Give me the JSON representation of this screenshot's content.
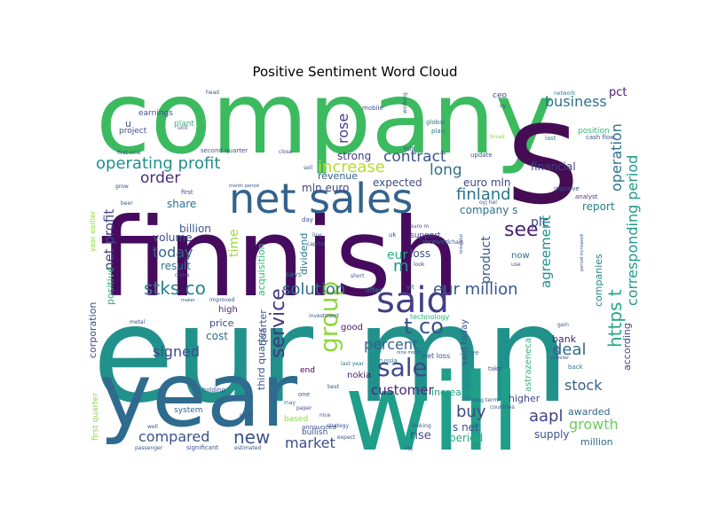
{
  "chart_data": {
    "type": "wordcloud",
    "title": "Positive Sentiment Word Cloud",
    "background": "#ffffff",
    "palette": "viridis",
    "words": [
      {
        "text": "company",
        "weight": 100,
        "color": "#3cba5f"
      },
      {
        "text": "finnish",
        "weight": 96,
        "color": "#460b5e"
      },
      {
        "text": "eur mn",
        "weight": 94,
        "color": "#21918c"
      },
      {
        "text": "s",
        "weight": 92,
        "color": "#450c54"
      },
      {
        "text": "will",
        "weight": 84,
        "color": "#1f9e89"
      },
      {
        "text": "year",
        "weight": 78,
        "color": "#2e6b8e"
      },
      {
        "text": "net sales",
        "weight": 52,
        "color": "#33638d"
      },
      {
        "text": "said",
        "weight": 40,
        "color": "#433e85"
      },
      {
        "text": "group",
        "weight": 30,
        "color": "#90d743"
      },
      {
        "text": "operating profit",
        "weight": 22,
        "color": "#218f8d"
      },
      {
        "text": "service",
        "weight": 22,
        "color": "#453781"
      },
      {
        "text": "sale",
        "weight": 24,
        "color": "#3e4a89"
      },
      {
        "text": "eur million",
        "weight": 20,
        "color": "#38588c"
      },
      {
        "text": "stks co",
        "weight": 20,
        "color": "#26828e"
      },
      {
        "text": "t co",
        "weight": 20,
        "color": "#3b518b"
      },
      {
        "text": "finland",
        "weight": 18,
        "color": "#2a768e"
      },
      {
        "text": "operation",
        "weight": 18,
        "color": "#2c728e"
      },
      {
        "text": "solution",
        "weight": 18,
        "color": "#2f6c8e"
      },
      {
        "text": "rose",
        "weight": 17,
        "color": "#424086"
      },
      {
        "text": "increase",
        "weight": 17,
        "color": "#b5de2b"
      },
      {
        "text": "business",
        "weight": 17,
        "color": "#2d708e"
      },
      {
        "text": "contract",
        "weight": 17,
        "color": "#3a548c"
      },
      {
        "text": "order",
        "weight": 17,
        "color": "#472c7a"
      },
      {
        "text": "long",
        "weight": 17,
        "color": "#2e6e8e"
      },
      {
        "text": "https t",
        "weight": 17,
        "color": "#23a983"
      },
      {
        "text": "corresponding period",
        "weight": 16,
        "color": "#1f988b"
      },
      {
        "text": "see",
        "weight": 17,
        "color": "#482173"
      },
      {
        "text": "buy",
        "weight": 16,
        "color": "#3f4889"
      },
      {
        "text": "percent",
        "weight": 16,
        "color": "#33638d"
      },
      {
        "text": "compared",
        "weight": 15,
        "color": "#3b528b"
      },
      {
        "text": "new",
        "weight": 16,
        "color": "#3b528b"
      },
      {
        "text": "market",
        "weight": 15,
        "color": "#3e4c8a"
      },
      {
        "text": "customer",
        "weight": 15,
        "color": "#482677"
      },
      {
        "text": "stock",
        "weight": 15,
        "color": "#34618d"
      },
      {
        "text": "aapl",
        "weight": 15,
        "color": "#414487"
      },
      {
        "text": "deal",
        "weight": 16,
        "color": "#2f6b8e"
      },
      {
        "text": "growth",
        "weight": 14,
        "color": "#6ccd5a"
      },
      {
        "text": "signed",
        "weight": 15,
        "color": "#3e4a89"
      },
      {
        "text": "today",
        "weight": 14,
        "color": "#31668e"
      },
      {
        "text": "agreement",
        "weight": 14,
        "color": "#228d8d"
      },
      {
        "text": "product",
        "weight": 13,
        "color": "#38598c"
      },
      {
        "text": "net profit",
        "weight": 14,
        "color": "#3f4788"
      },
      {
        "text": "m",
        "weight": 15,
        "color": "#1f958b"
      },
      {
        "text": "pct",
        "weight": 12,
        "color": "#481c6e"
      },
      {
        "text": "plc",
        "weight": 12,
        "color": "#3c4f8a"
      },
      {
        "text": "eur",
        "weight": 12,
        "color": "#28ae80"
      },
      {
        "text": "financial",
        "weight": 11,
        "color": "#404387"
      },
      {
        "text": "company s",
        "weight": 11,
        "color": "#2c718e"
      },
      {
        "text": "report",
        "weight": 11,
        "color": "#277e8e"
      },
      {
        "text": "companies",
        "weight": 10,
        "color": "#25838e"
      },
      {
        "text": "euro mln",
        "weight": 11,
        "color": "#3f4788"
      },
      {
        "text": "loss",
        "weight": 11,
        "color": "#39558c"
      },
      {
        "text": "expected",
        "weight": 11,
        "color": "#3d4d8a"
      },
      {
        "text": "strong",
        "weight": 11,
        "color": "#433d84"
      },
      {
        "text": "revenue",
        "weight": 10,
        "color": "#355f8d"
      },
      {
        "text": "mln euro",
        "weight": 11,
        "color": "#424186"
      },
      {
        "text": "share",
        "weight": 10,
        "color": "#2c728e"
      },
      {
        "text": "billion",
        "weight": 10,
        "color": "#3a538b"
      },
      {
        "text": "volume",
        "weight": 10,
        "color": "#3e4a89"
      },
      {
        "text": "result",
        "weight": 10,
        "color": "#2a778e"
      },
      {
        "text": "time",
        "weight": 12,
        "color": "#9bd93c"
      },
      {
        "text": "positive",
        "weight": 10,
        "color": "#28ae80"
      },
      {
        "text": "acquisition",
        "weight": 10,
        "color": "#35b779"
      },
      {
        "text": "dividend",
        "weight": 10,
        "color": "#2b758e"
      },
      {
        "text": "corporation",
        "weight": 9,
        "color": "#3e4989"
      },
      {
        "text": "quarter",
        "weight": 9,
        "color": "#3a548c"
      },
      {
        "text": "third quarter",
        "weight": 9,
        "color": "#39568c"
      },
      {
        "text": "cost",
        "weight": 10,
        "color": "#2d708e"
      },
      {
        "text": "price",
        "weight": 9,
        "color": "#3f4889"
      },
      {
        "text": "high",
        "weight": 9,
        "color": "#482475"
      },
      {
        "text": "good",
        "weight": 9,
        "color": "#481b6d"
      },
      {
        "text": "said today",
        "weight": 9,
        "color": "#3b528b"
      },
      {
        "text": "nokia",
        "weight": 9,
        "color": "#48186a"
      },
      {
        "text": "increased",
        "weight": 9,
        "color": "#20a386"
      },
      {
        "text": "higher",
        "weight": 9,
        "color": "#414487"
      },
      {
        "text": "bank",
        "weight": 9,
        "color": "#481f70"
      },
      {
        "text": "rise",
        "weight": 10,
        "color": "#3f4889"
      },
      {
        "text": "s net",
        "weight": 10,
        "color": "#3c508b"
      },
      {
        "text": "period",
        "weight": 10,
        "color": "#28ae80"
      },
      {
        "text": "supply",
        "weight": 9,
        "color": "#3b528b"
      },
      {
        "text": "awarded",
        "weight": 9,
        "color": "#31688e"
      },
      {
        "text": "million",
        "weight": 9,
        "color": "#306a8e"
      },
      {
        "text": "according",
        "weight": 9,
        "color": "#3e4a89"
      },
      {
        "text": "astrazeneca",
        "weight": 8,
        "color": "#35b779"
      },
      {
        "text": "now",
        "weight": 8,
        "color": "#2e6d8e"
      },
      {
        "text": "support",
        "weight": 7,
        "color": "#3f4889"
      },
      {
        "text": "received",
        "weight": 6,
        "color": "#2d708e"
      },
      {
        "text": "end",
        "weight": 7,
        "color": "#440154"
      },
      {
        "text": "says",
        "weight": 7,
        "color": "#2a788e"
      },
      {
        "text": "bullish",
        "weight": 7,
        "color": "#3b528b"
      },
      {
        "text": "system",
        "weight": 7,
        "color": "#31688e"
      },
      {
        "text": "based",
        "weight": 7,
        "color": "#8fd744"
      },
      {
        "text": "technology",
        "weight": 7,
        "color": "#2fb47c"
      },
      {
        "text": "offer",
        "weight": 6,
        "color": "#26828e"
      },
      {
        "text": "net loss",
        "weight": 6,
        "color": "#3e4a89"
      },
      {
        "text": "earnings",
        "weight": 7,
        "color": "#3b528b"
      },
      {
        "text": "u",
        "weight": 9,
        "color": "#3a538b"
      },
      {
        "text": "project",
        "weight": 7,
        "color": "#3e4c8a"
      },
      {
        "text": "plant",
        "weight": 7,
        "color": "#35b779"
      },
      {
        "text": "mobile",
        "weight": 5,
        "color": "#3b528b"
      },
      {
        "text": "ceo",
        "weight": 6,
        "color": "#3e4989"
      },
      {
        "text": "global",
        "weight": 5,
        "color": "#2c728e"
      },
      {
        "text": "plan",
        "weight": 5,
        "color": "#2d708e"
      },
      {
        "text": "tsla",
        "weight": 5,
        "color": "#3e4989"
      },
      {
        "text": "update",
        "weight": 5,
        "color": "#3b528b"
      },
      {
        "text": "uk",
        "weight": 5,
        "color": "#3b528b"
      },
      {
        "text": "yit",
        "weight": 5,
        "color": "#2a788e"
      },
      {
        "text": "first",
        "weight": 5,
        "color": "#3e4a89"
      },
      {
        "text": "improve",
        "weight": 5,
        "color": "#3b528b"
      },
      {
        "text": "analyst",
        "weight": 5,
        "color": "#46337f"
      },
      {
        "text": "position",
        "weight": 6,
        "color": "#35b779"
      },
      {
        "text": "cash flow",
        "weight": 5,
        "color": "#3b528b"
      },
      {
        "text": "network",
        "weight": 5,
        "color": "#26828e"
      },
      {
        "text": "last",
        "weight": 5,
        "color": "#2a788e"
      },
      {
        "text": "gain",
        "weight": 5,
        "color": "#3b528b"
      },
      {
        "text": "back",
        "weight": 5,
        "color": "#2a788e"
      },
      {
        "text": "fb",
        "weight": 5,
        "color": "#3b528b"
      },
      {
        "text": "take",
        "weight": 5,
        "color": "#3b528b"
      },
      {
        "text": "move",
        "weight": 5,
        "color": "#2a788e"
      },
      {
        "text": "russia",
        "weight": 5,
        "color": "#2a788e"
      },
      {
        "text": "last year",
        "weight": 5,
        "color": "#2a788e"
      },
      {
        "text": "best",
        "weight": 5,
        "color": "#3b528b"
      },
      {
        "text": "one",
        "weight": 5,
        "color": "#3b528b"
      },
      {
        "text": "paper",
        "weight": 4,
        "color": "#3b528b"
      },
      {
        "text": "may",
        "weight": 4,
        "color": "#2a788e"
      },
      {
        "text": "holding",
        "weight": 5,
        "color": "#3b528b"
      },
      {
        "text": "well",
        "weight": 5,
        "color": "#3b528b"
      },
      {
        "text": "significant",
        "weight": 5,
        "color": "#3b528b"
      },
      {
        "text": "estimated",
        "weight": 4,
        "color": "#3b528b"
      },
      {
        "text": "retail",
        "weight": 4,
        "color": "#3b528b"
      },
      {
        "text": "announced",
        "weight": 5,
        "color": "#3b528b"
      },
      {
        "text": "expect",
        "weight": 4,
        "color": "#3b528b"
      },
      {
        "text": "oyj",
        "weight": 4,
        "color": "#3b528b"
      },
      {
        "text": "looking",
        "weight": 4,
        "color": "#3b528b"
      },
      {
        "text": "strategy",
        "weight": 4,
        "color": "#3b528b"
      },
      {
        "text": "nice",
        "weight": 4,
        "color": "#3b528b"
      },
      {
        "text": "investment",
        "weight": 5,
        "color": "#3b528b"
      },
      {
        "text": "improved",
        "weight": 5,
        "color": "#3b528b"
      },
      {
        "text": "maker",
        "weight": 4,
        "color": "#3b528b"
      },
      {
        "text": "metal",
        "weight": 5,
        "color": "#3b528b"
      },
      {
        "text": "passenger",
        "weight": 4,
        "color": "#3b528b"
      },
      {
        "text": "first quarter",
        "weight": 6,
        "color": "#8fd744"
      },
      {
        "text": "year earlier",
        "weight": 5,
        "color": "#8fd744"
      },
      {
        "text": "second quarter",
        "weight": 5,
        "color": "#3b528b"
      },
      {
        "text": "first nine",
        "weight": 4,
        "color": "#3b528b"
      },
      {
        "text": "head",
        "weight": 4,
        "color": "#3b528b"
      },
      {
        "text": "unit",
        "weight": 4,
        "color": "#3b528b"
      },
      {
        "text": "line",
        "weight": 4,
        "color": "#3b528b"
      },
      {
        "text": "day",
        "weight": 5,
        "color": "#3b528b"
      },
      {
        "text": "capital",
        "weight": 4,
        "color": "#3b528b"
      },
      {
        "text": "chain",
        "weight": 4,
        "color": "#3b528b"
      },
      {
        "text": "use",
        "weight": 4,
        "color": "#3b528b"
      },
      {
        "text": "look",
        "weight": 4,
        "color": "#3b528b"
      },
      {
        "text": "short",
        "weight": 4,
        "color": "#3b528b"
      },
      {
        "text": "beer",
        "weight": 4,
        "color": "#3b528b"
      },
      {
        "text": "sell",
        "weight": 4,
        "color": "#3b528b"
      },
      {
        "text": "close",
        "weight": 4,
        "color": "#3b528b"
      },
      {
        "text": "month period",
        "weight": 4,
        "color": "#3b528b"
      },
      {
        "text": "nine month",
        "weight": 4,
        "color": "#3b528b"
      },
      {
        "text": "working",
        "weight": 4,
        "color": "#3b528b"
      },
      {
        "text": "long term",
        "weight": 4,
        "color": "#3b528b"
      },
      {
        "text": "countries",
        "weight": 4,
        "color": "#3b528b"
      },
      {
        "text": "oy",
        "weight": 4,
        "color": "#3b528b"
      },
      {
        "text": "oyj hel",
        "weight": 4,
        "color": "#3b528b"
      },
      {
        "text": "breakout",
        "weight": 4,
        "color": "#3b528b"
      },
      {
        "text": "break",
        "weight": 4,
        "color": "#8fd744"
      },
      {
        "text": "grow",
        "weight": 4,
        "color": "#3b528b"
      },
      {
        "text": "china",
        "weight": 4,
        "color": "#3b528b"
      },
      {
        "text": "period increased",
        "weight": 3,
        "color": "#3b528b"
      },
      {
        "text": "salmiller",
        "weight": 3,
        "color": "#3b528b"
      },
      {
        "text": "euro m",
        "weight": 3,
        "color": "#3b528b"
      }
    ]
  }
}
